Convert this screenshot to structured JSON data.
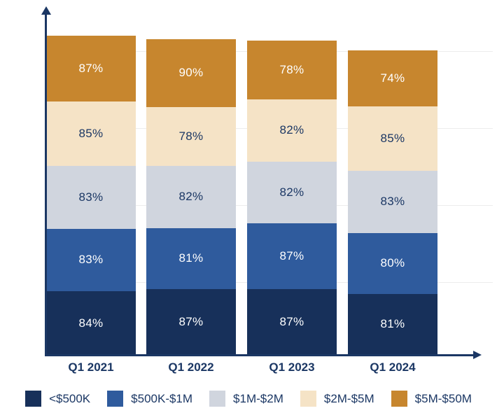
{
  "chart_data": {
    "type": "bar",
    "stacked": true,
    "title": "",
    "categories": [
      "Q1 2021",
      "Q1 2022",
      "Q1 2023",
      "Q1 2024"
    ],
    "series": [
      {
        "name": "<$500K",
        "color": "#17305A",
        "label_color": "#FFFFFF",
        "values": [
          84,
          87,
          87,
          81
        ]
      },
      {
        "name": "$500K-$1M",
        "color": "#2F5B9D",
        "label_color": "#FFFFFF",
        "values": [
          83,
          81,
          87,
          80
        ]
      },
      {
        "name": "$1M-$2M",
        "color": "#D0D5DE",
        "label_color": "#1B3764",
        "values": [
          83,
          82,
          82,
          83
        ]
      },
      {
        "name": "$2M-$5M",
        "color": "#F5E3C6",
        "label_color": "#1B3764",
        "values": [
          85,
          78,
          82,
          85
        ]
      },
      {
        "name": "$5M-$50M",
        "color": "#C7862E",
        "label_color": "#FFFFFF",
        "values": [
          87,
          90,
          78,
          74
        ]
      }
    ],
    "stack_order": "bottom-to-top",
    "value_suffix": "%",
    "value_labels": "inside-center",
    "legend_position": "bottom",
    "gridlines": true,
    "axis_arrows": true,
    "axis_color": "#1B3764",
    "background_color": "#FFFFFF"
  }
}
